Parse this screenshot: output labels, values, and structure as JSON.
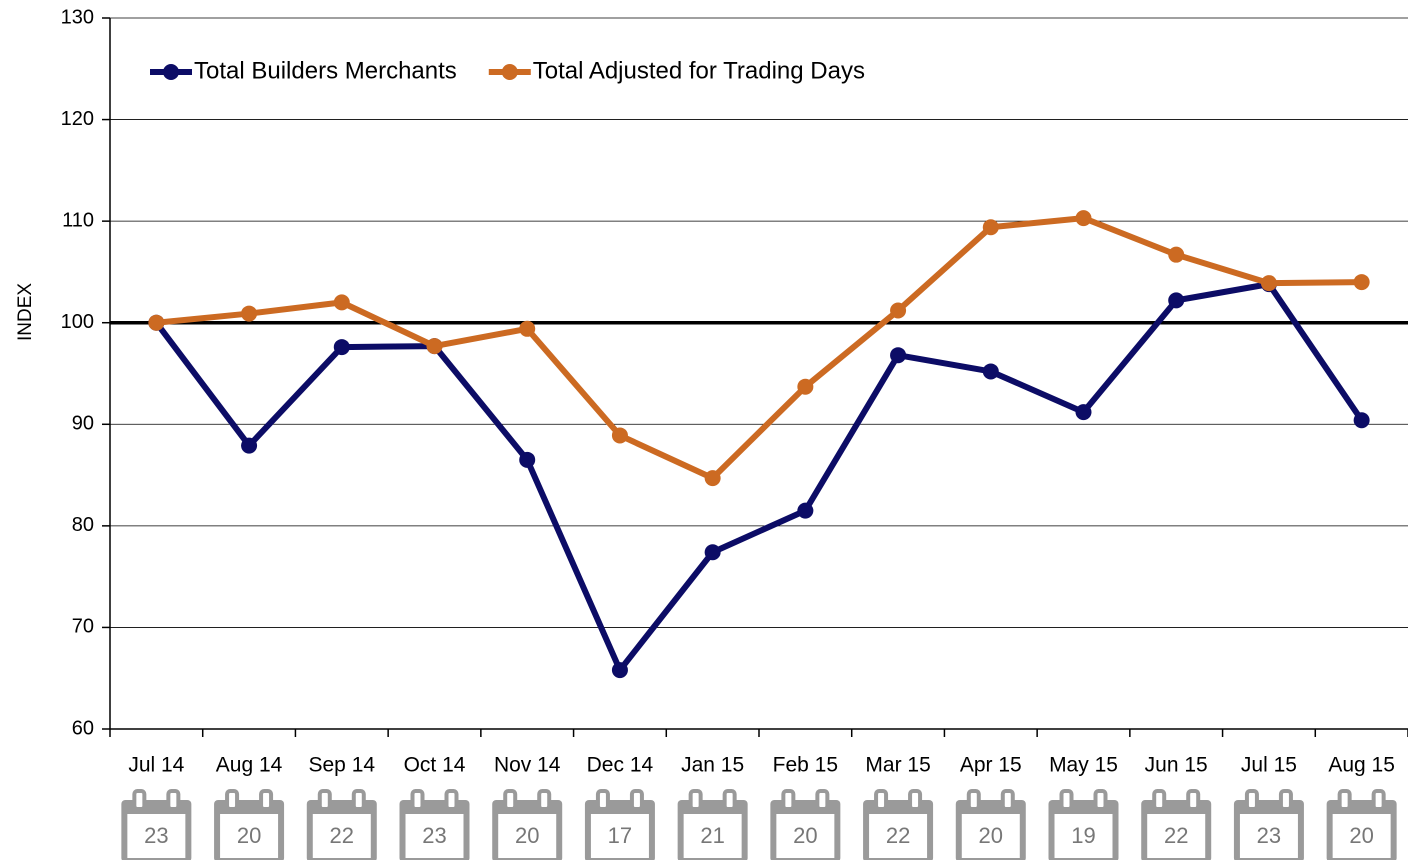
{
  "chart_data": {
    "type": "line",
    "y_label": "INDEX",
    "categories": [
      "Jul 14",
      "Aug 14",
      "Sep 14",
      "Oct 14",
      "Nov 14",
      "Dec 14",
      "Jan 15",
      "Feb 15",
      "Mar 15",
      "Apr 15",
      "May 15",
      "Jun 15",
      "Jul 15",
      "Aug 15"
    ],
    "series": [
      {
        "name": "Total Builders Merchants",
        "color": "#0c0c66",
        "values": [
          100,
          87.9,
          97.6,
          97.7,
          86.5,
          65.8,
          77.4,
          81.5,
          96.8,
          95.2,
          91.2,
          102.2,
          103.8,
          90.4
        ]
      },
      {
        "name": "Total Adjusted for Trading Days",
        "color": "#cc6a22",
        "values": [
          100,
          100.9,
          102,
          97.7,
          99.4,
          88.9,
          84.7,
          93.7,
          101.2,
          109.4,
          110.3,
          106.7,
          103.9,
          104
        ]
      }
    ],
    "trading_days": [
      23,
      20,
      22,
      23,
      20,
      17,
      21,
      20,
      22,
      20,
      19,
      22,
      23,
      20
    ],
    "reference_line": 100,
    "ylim": [
      60,
      130
    ],
    "yticks": [
      60,
      70,
      80,
      90,
      100,
      110,
      120,
      130
    ],
    "grid": true,
    "legend": "top-left"
  }
}
